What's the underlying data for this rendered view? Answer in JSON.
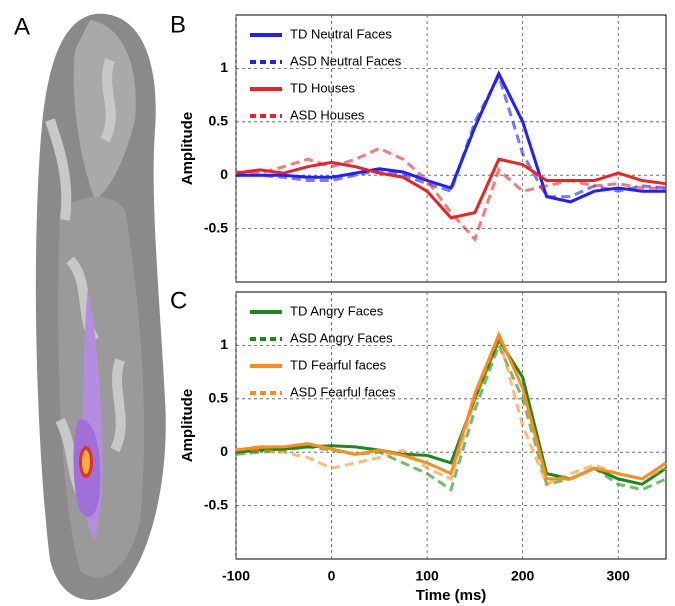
{
  "panel_labels": [
    "A",
    "B",
    "C"
  ],
  "chart_data": [
    {
      "type": "line",
      "ylabel": "Amplitude",
      "show_xtick_labels": false,
      "x": [
        -100,
        -75,
        -50,
        -25,
        0,
        25,
        50,
        75,
        100,
        125,
        150,
        175,
        200,
        225,
        250,
        275,
        300,
        325,
        350
      ],
      "xlim": [
        -100,
        350
      ],
      "xticks": [
        -100,
        0,
        100,
        200,
        300
      ],
      "ylim": [
        -1,
        1.5
      ],
      "yticks": [
        -0.5,
        0,
        0.5,
        1
      ],
      "grid": true,
      "legend": "upper left",
      "series": [
        {
          "name": "TD Neutral Faces",
          "color": "#1f1fff",
          "linestyle": "solid",
          "values": [
            0,
            0,
            0,
            -0.02,
            -0.02,
            0.02,
            0.06,
            0.03,
            -0.05,
            -0.12,
            0.45,
            0.95,
            0.5,
            -0.2,
            -0.25,
            -0.15,
            -0.12,
            -0.15,
            -0.15
          ]
        },
        {
          "name": "ASD Neutral Faces",
          "color": "#1f1fff",
          "linestyle": "dashed",
          "values": [
            0,
            0,
            -0.02,
            -0.05,
            -0.05,
            0,
            0.05,
            0,
            -0.08,
            -0.15,
            0.5,
            0.93,
            0.2,
            -0.2,
            -0.2,
            -0.1,
            -0.15,
            -0.1,
            -0.12
          ]
        },
        {
          "name": "TD Houses",
          "color": "#ee2222",
          "linestyle": "solid",
          "values": [
            0.02,
            0.05,
            0.02,
            0.08,
            0.12,
            0.08,
            0.02,
            -0.02,
            -0.15,
            -0.4,
            -0.35,
            0.15,
            0.1,
            -0.05,
            -0.05,
            -0.05,
            0.02,
            -0.05,
            -0.08
          ]
        },
        {
          "name": "ASD Houses",
          "color": "#ee2222",
          "linestyle": "dashed",
          "values": [
            0.03,
            0.02,
            0.08,
            0.15,
            0.08,
            0.15,
            0.25,
            0.15,
            -0.05,
            -0.35,
            -0.6,
            0.05,
            -0.15,
            -0.1,
            -0.05,
            -0.1,
            -0.08,
            -0.12,
            -0.12
          ]
        }
      ]
    },
    {
      "type": "line",
      "ylabel": "Amplitude",
      "xlabel": "Time (ms)",
      "show_xtick_labels": true,
      "x": [
        -100,
        -75,
        -50,
        -25,
        0,
        25,
        50,
        75,
        100,
        125,
        150,
        175,
        200,
        225,
        250,
        275,
        300,
        325,
        350
      ],
      "xlim": [
        -100,
        350
      ],
      "xticks": [
        -100,
        0,
        100,
        200,
        300
      ],
      "ylim": [
        -1,
        1.5
      ],
      "yticks": [
        -0.5,
        0,
        0.5,
        1
      ],
      "grid": true,
      "legend": "upper left",
      "series": [
        {
          "name": "TD Angry Faces",
          "color": "#1a8a1a",
          "linestyle": "solid",
          "values": [
            0,
            0.02,
            0.03,
            0.05,
            0.06,
            0.05,
            0.02,
            -0.02,
            -0.03,
            -0.1,
            0.5,
            1.05,
            0.7,
            -0.2,
            -0.25,
            -0.15,
            -0.25,
            -0.3,
            -0.15
          ]
        },
        {
          "name": "ASD Angry Faces",
          "color": "#1a8a1a",
          "linestyle": "dashed",
          "values": [
            -0.02,
            0,
            0.02,
            0.05,
            0.02,
            -0.02,
            0,
            -0.1,
            -0.2,
            -0.35,
            0.4,
            1.0,
            0.5,
            -0.3,
            -0.25,
            -0.15,
            -0.3,
            -0.35,
            -0.25
          ]
        },
        {
          "name": "TD Fearful faces",
          "color": "#ff8c1a",
          "linestyle": "solid",
          "values": [
            0.02,
            0.05,
            0.05,
            0.08,
            0.03,
            -0.02,
            0.02,
            -0.03,
            -0.1,
            -0.2,
            0.55,
            1.1,
            0.6,
            -0.25,
            -0.25,
            -0.15,
            -0.2,
            -0.25,
            -0.1
          ]
        },
        {
          "name": "ASD Fearful faces",
          "color": "#ff8c1a",
          "linestyle": "dashed",
          "values": [
            0.03,
            0.02,
            0,
            -0.05,
            -0.15,
            -0.1,
            -0.05,
            0.02,
            -0.15,
            -0.25,
            0.5,
            1.08,
            0.25,
            -0.3,
            -0.2,
            -0.12,
            -0.2,
            -0.25,
            -0.15
          ]
        }
      ]
    }
  ]
}
